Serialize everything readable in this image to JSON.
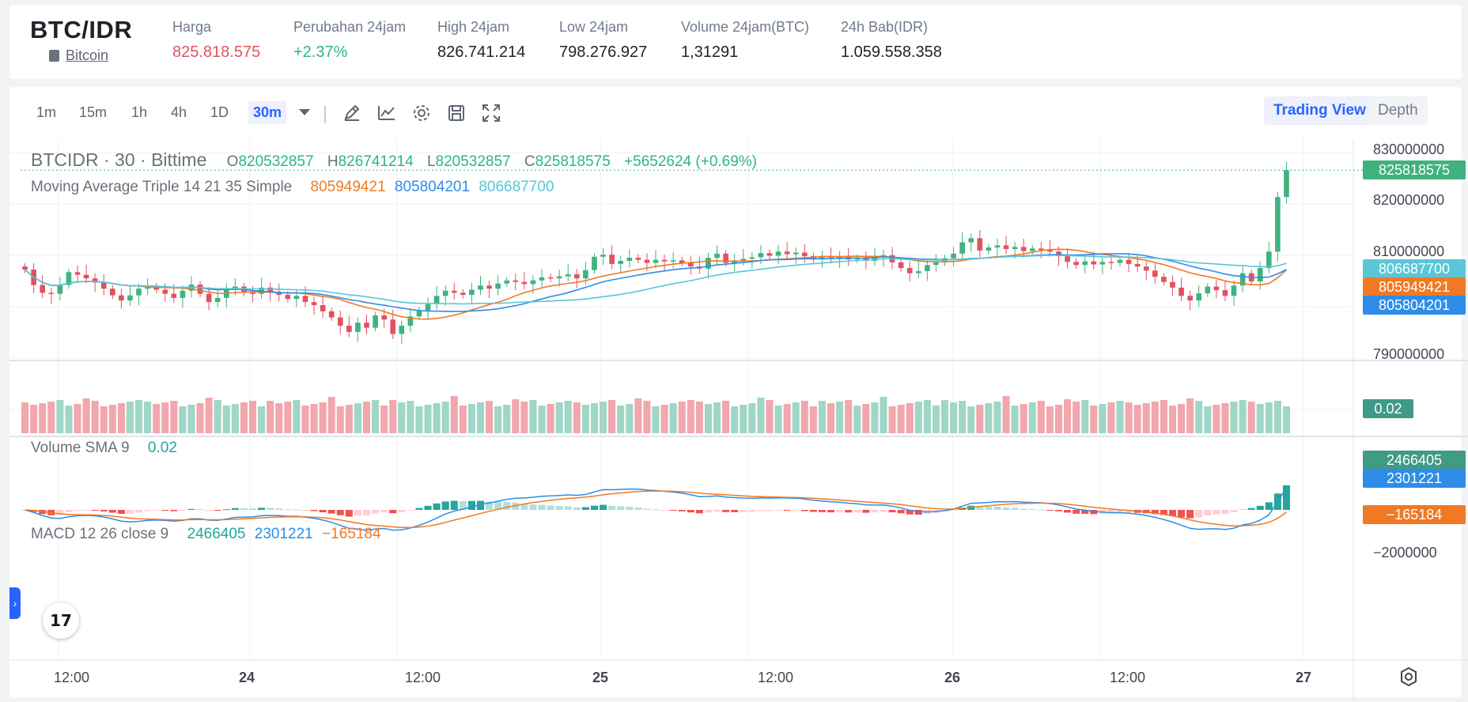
{
  "header": {
    "pair": "BTC/IDR",
    "coin_link": "Bitcoin",
    "stats": [
      {
        "label": "Harga",
        "value": "825.818.575",
        "tone": "red"
      },
      {
        "label": "Perubahan 24jam",
        "value": "+2.37%",
        "tone": "green"
      },
      {
        "label": "High 24jam",
        "value": "826.741.214",
        "tone": ""
      },
      {
        "label": "Low 24jam",
        "value": "798.276.927",
        "tone": ""
      },
      {
        "label": "Volume 24jam(BTC)",
        "value": "1,31291",
        "tone": ""
      },
      {
        "label": "24h Bab(IDR)",
        "value": "1.059.558.358",
        "tone": ""
      }
    ]
  },
  "toolbar": {
    "timeframes": [
      "1m",
      "15m",
      "1h",
      "4h",
      "1D"
    ],
    "active_timeframe": "30m",
    "tools": [
      "pencil-icon",
      "indicator-icon",
      "gear-icon",
      "save-icon",
      "fullscreen-icon"
    ],
    "view_tabs": {
      "trading_view": "Trading View",
      "depth": "Depth"
    }
  },
  "legend": {
    "symbol": "BTCIDR · 30 · Bittime",
    "o_label": "O",
    "o": "820532857",
    "h_label": "H",
    "h": "826741214",
    "l_label": "L",
    "l": "820532857",
    "c_label": "C",
    "c": "825818575",
    "change": "+5652624 (+0.69%)",
    "ma_title": "Moving Average Triple 14 21 35 Simple",
    "ma_values": [
      "805949421",
      "805804201",
      "806687700"
    ],
    "vol_title": "Volume SMA 9",
    "vol_value": "0.02",
    "macd_title": "MACD 12 26 close 9",
    "macd_values": [
      "2466405",
      "2301221",
      "−165184"
    ]
  },
  "price_axis": {
    "ticks": [
      "830000000",
      "820000000",
      "810000000",
      "790000000"
    ],
    "tags": {
      "last": "825818575",
      "ma35": "806687700",
      "ma14": "805949421",
      "ma21": "805804201"
    },
    "vol_tag": "0.02",
    "macd_tags": {
      "macd": "2466405",
      "signal": "2301221",
      "hist": "−165184"
    },
    "macd_tick": "−2000000"
  },
  "time_axis": [
    "12:00",
    "24",
    "12:00",
    "25",
    "12:00",
    "26",
    "12:00",
    "27"
  ],
  "colors": {
    "up": "#26a69a",
    "down": "#ef5350",
    "ma14": "#f07a24",
    "ma21": "#2d8de8",
    "ma35": "#5ac6d8",
    "up_fill": "#3fb27f",
    "down_fill": "#e0525e"
  },
  "chart_data": {
    "type": "candlestick",
    "price_range": [
      789000000,
      832000000
    ],
    "candles_close_approx": [
      806500000,
      803500000,
      802000000,
      801800000,
      803500000,
      806000000,
      805500000,
      804800000,
      804000000,
      802800000,
      801500000,
      800500000,
      801500000,
      802800000,
      803200000,
      802600000,
      801800000,
      801000000,
      802400000,
      803600000,
      801800000,
      800200000,
      801000000,
      802800000,
      803200000,
      802000000,
      801800000,
      803000000,
      802200000,
      801600000,
      800800000,
      801400000,
      800200000,
      799600000,
      798400000,
      797200000,
      795600000,
      794400000,
      796200000,
      795200000,
      797600000,
      796800000,
      794000000,
      795600000,
      797400000,
      798600000,
      799800000,
      801400000,
      802400000,
      802000000,
      801600000,
      802600000,
      803400000,
      802800000,
      803800000,
      804400000,
      804100000,
      803700000,
      804400000,
      805000000,
      804800000,
      805200000,
      805600000,
      804800000,
      806400000,
      809000000,
      809400000,
      807600000,
      808200000,
      808800000,
      808400000,
      807800000,
      808400000,
      808100000,
      808300000,
      807800000,
      807100000,
      806700000,
      808800000,
      809600000,
      807800000,
      808300000,
      808600000,
      808900000,
      809700000,
      809200000,
      810000000,
      809500000,
      809800000,
      809100000,
      808500000,
      808900000,
      808700000,
      809100000,
      808500000,
      808700000,
      808200000,
      808900000,
      809300000,
      807900000,
      806800000,
      805800000,
      806200000,
      807400000,
      807900000,
      808700000,
      809600000,
      811800000,
      812600000,
      810200000,
      810800000,
      811200000,
      810500000,
      810900000,
      810100000,
      810600000,
      810300000,
      810000000,
      809100000,
      808000000,
      807400000,
      808100000,
      807500000,
      808000000,
      807800000,
      808400000,
      807600000,
      807100000,
      806300000,
      805100000,
      804100000,
      803000000,
      801400000,
      800500000,
      801900000,
      803200000,
      802500000,
      801400000,
      803400000,
      805800000,
      804200000,
      806800000,
      810000000,
      820600000,
      825818575
    ]
  }
}
